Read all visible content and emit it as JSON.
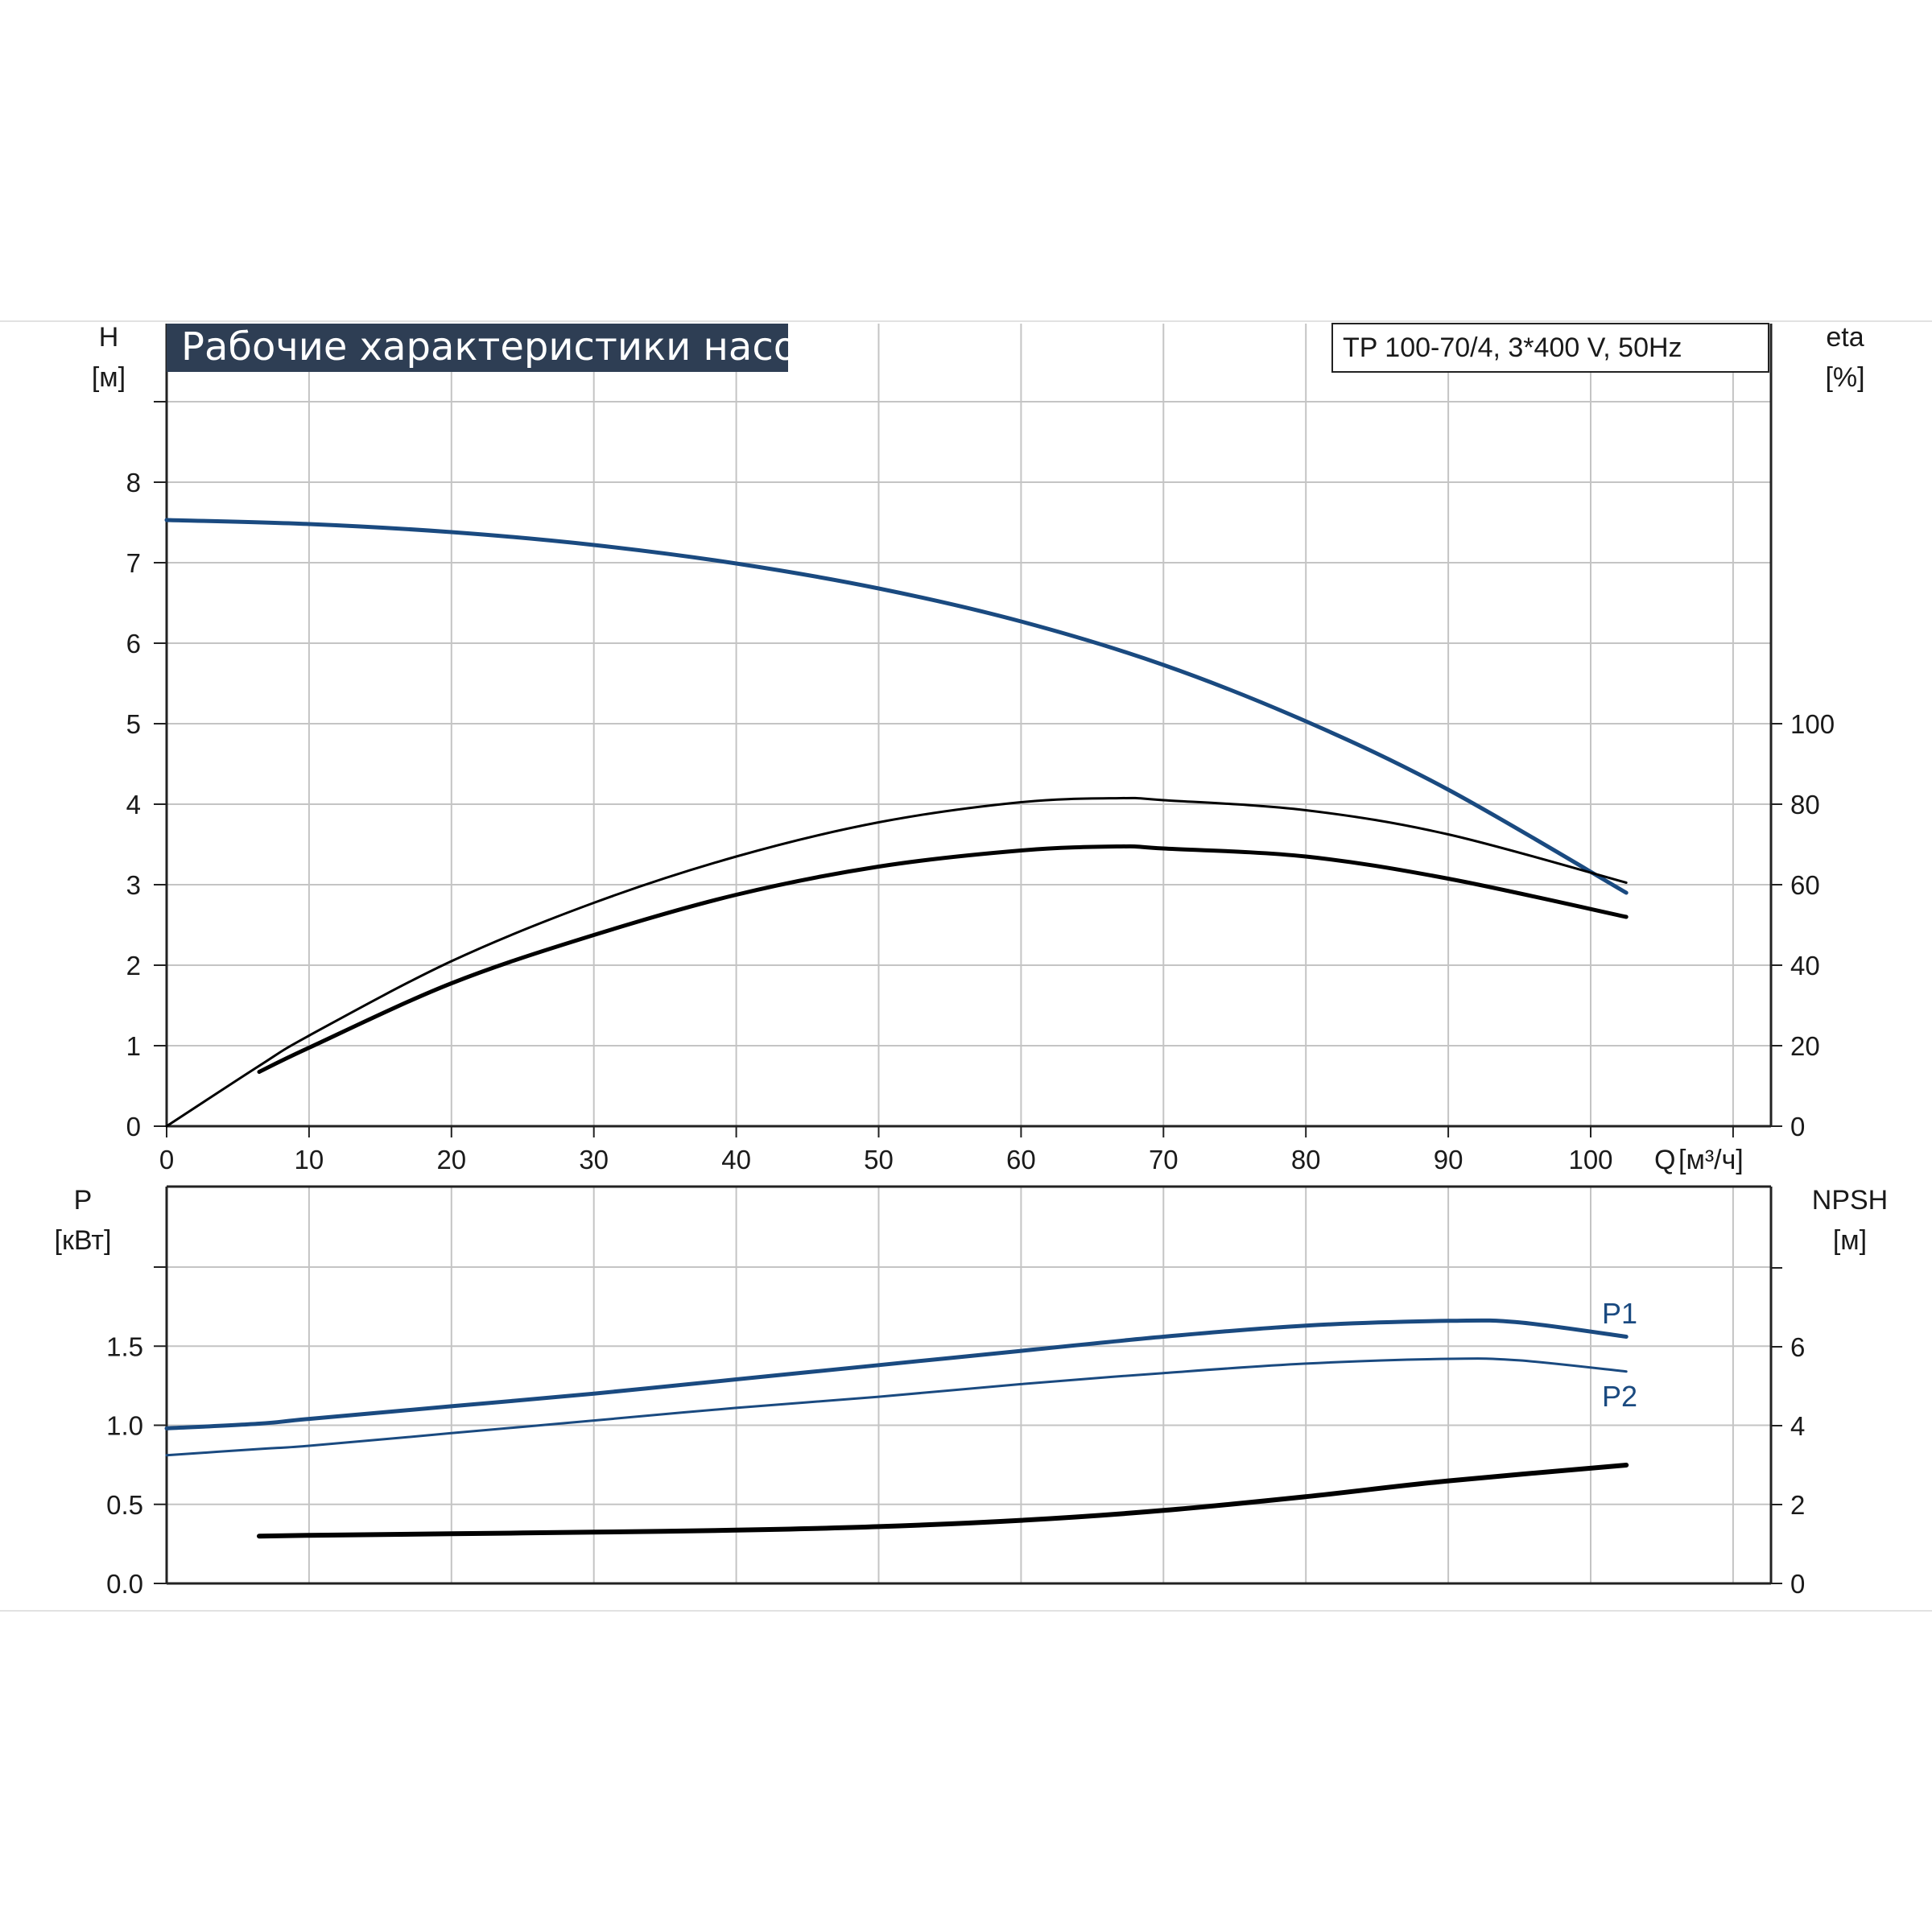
{
  "chart_data": [
    {
      "type": "line",
      "panel": "top",
      "title": "Рабочие характеристики насоса",
      "model": "TP 100-70/4, 3*400 V, 50Hz",
      "xlabel": "Q [м³/ч]",
      "xlabel_left": "Q",
      "xlabel_unit": "[м³/ч]",
      "xlim": [
        0,
        112
      ],
      "xticks": [
        "0",
        "10",
        "20",
        "30",
        "40",
        "50",
        "60",
        "70",
        "80",
        "90",
        "100"
      ],
      "y_left": {
        "label": "H",
        "unit": "[м]",
        "ylim": [
          0,
          10
        ],
        "ticks": [
          "0",
          "1",
          "2",
          "3",
          "4",
          "5",
          "6",
          "7",
          "8"
        ]
      },
      "y_right": {
        "label": "eta",
        "unit": "[%]",
        "ticks": [
          "0",
          "20",
          "40",
          "60",
          "80",
          "100"
        ]
      },
      "grid": true,
      "series": [
        {
          "axis": "left",
          "color": "#1a4a80",
          "x": [
            0,
            10,
            20,
            30,
            40,
            50,
            60,
            70,
            80,
            90,
            102.5
          ],
          "y": [
            7.53,
            7.48,
            7.38,
            7.22,
            6.99,
            6.68,
            6.27,
            5.73,
            5.03,
            4.18,
            2.9
          ]
        },
        {
          "axis": "right",
          "color": "#000000",
          "x": [
            0,
            6.5,
            10,
            20,
            30,
            40,
            50,
            60,
            67,
            70,
            80,
            90,
            102.5
          ],
          "y": [
            0,
            15,
            22.5,
            41,
            55.5,
            67,
            75.5,
            80.5,
            81.5,
            81,
            78.5,
            72.5,
            60.5
          ]
        },
        {
          "axis": "right",
          "color": "#000000",
          "x": [
            6.5,
            10,
            20,
            30,
            40,
            50,
            60,
            67,
            70,
            80,
            90,
            102.5
          ],
          "y": [
            13.5,
            19.5,
            35.5,
            47.5,
            57.5,
            64.5,
            68.5,
            69.5,
            69,
            67,
            61.5,
            52
          ]
        }
      ]
    },
    {
      "type": "line",
      "panel": "bottom",
      "xlim": [
        0,
        112
      ],
      "y_left": {
        "label": "P",
        "unit": "[кВт]",
        "ylim": [
          0,
          2.0
        ],
        "ticks": [
          "0.0",
          "0.5",
          "1.0",
          "1.5"
        ]
      },
      "y_right": {
        "label": "NPSH",
        "unit": "[м]",
        "ylim": [
          0,
          8
        ],
        "ticks": [
          "0",
          "2",
          "4",
          "6"
        ]
      },
      "grid": true,
      "series": [
        {
          "name": "P1",
          "axis": "left",
          "color": "#1a4a80",
          "x": [
            0,
            6.5,
            10,
            20,
            30,
            40,
            50,
            60,
            70,
            80,
            90,
            95,
            102.5
          ],
          "y": [
            0.98,
            1.01,
            1.04,
            1.12,
            1.2,
            1.29,
            1.38,
            1.47,
            1.56,
            1.63,
            1.66,
            1.65,
            1.56
          ]
        },
        {
          "name": "P2",
          "axis": "left",
          "color": "#1a4a80",
          "x": [
            0,
            6.5,
            10,
            20,
            30,
            40,
            50,
            60,
            70,
            80,
            90,
            95,
            102.5
          ],
          "y": [
            0.81,
            0.85,
            0.87,
            0.95,
            1.03,
            1.11,
            1.18,
            1.26,
            1.33,
            1.39,
            1.42,
            1.41,
            1.34
          ]
        },
        {
          "axis": "right",
          "color": "#000000",
          "x": [
            6.5,
            10,
            20,
            30,
            40,
            50,
            60,
            70,
            80,
            90,
            102.5
          ],
          "y": [
            1.2,
            1.22,
            1.26,
            1.3,
            1.35,
            1.44,
            1.6,
            1.85,
            2.2,
            2.6,
            3.0
          ]
        }
      ]
    }
  ]
}
